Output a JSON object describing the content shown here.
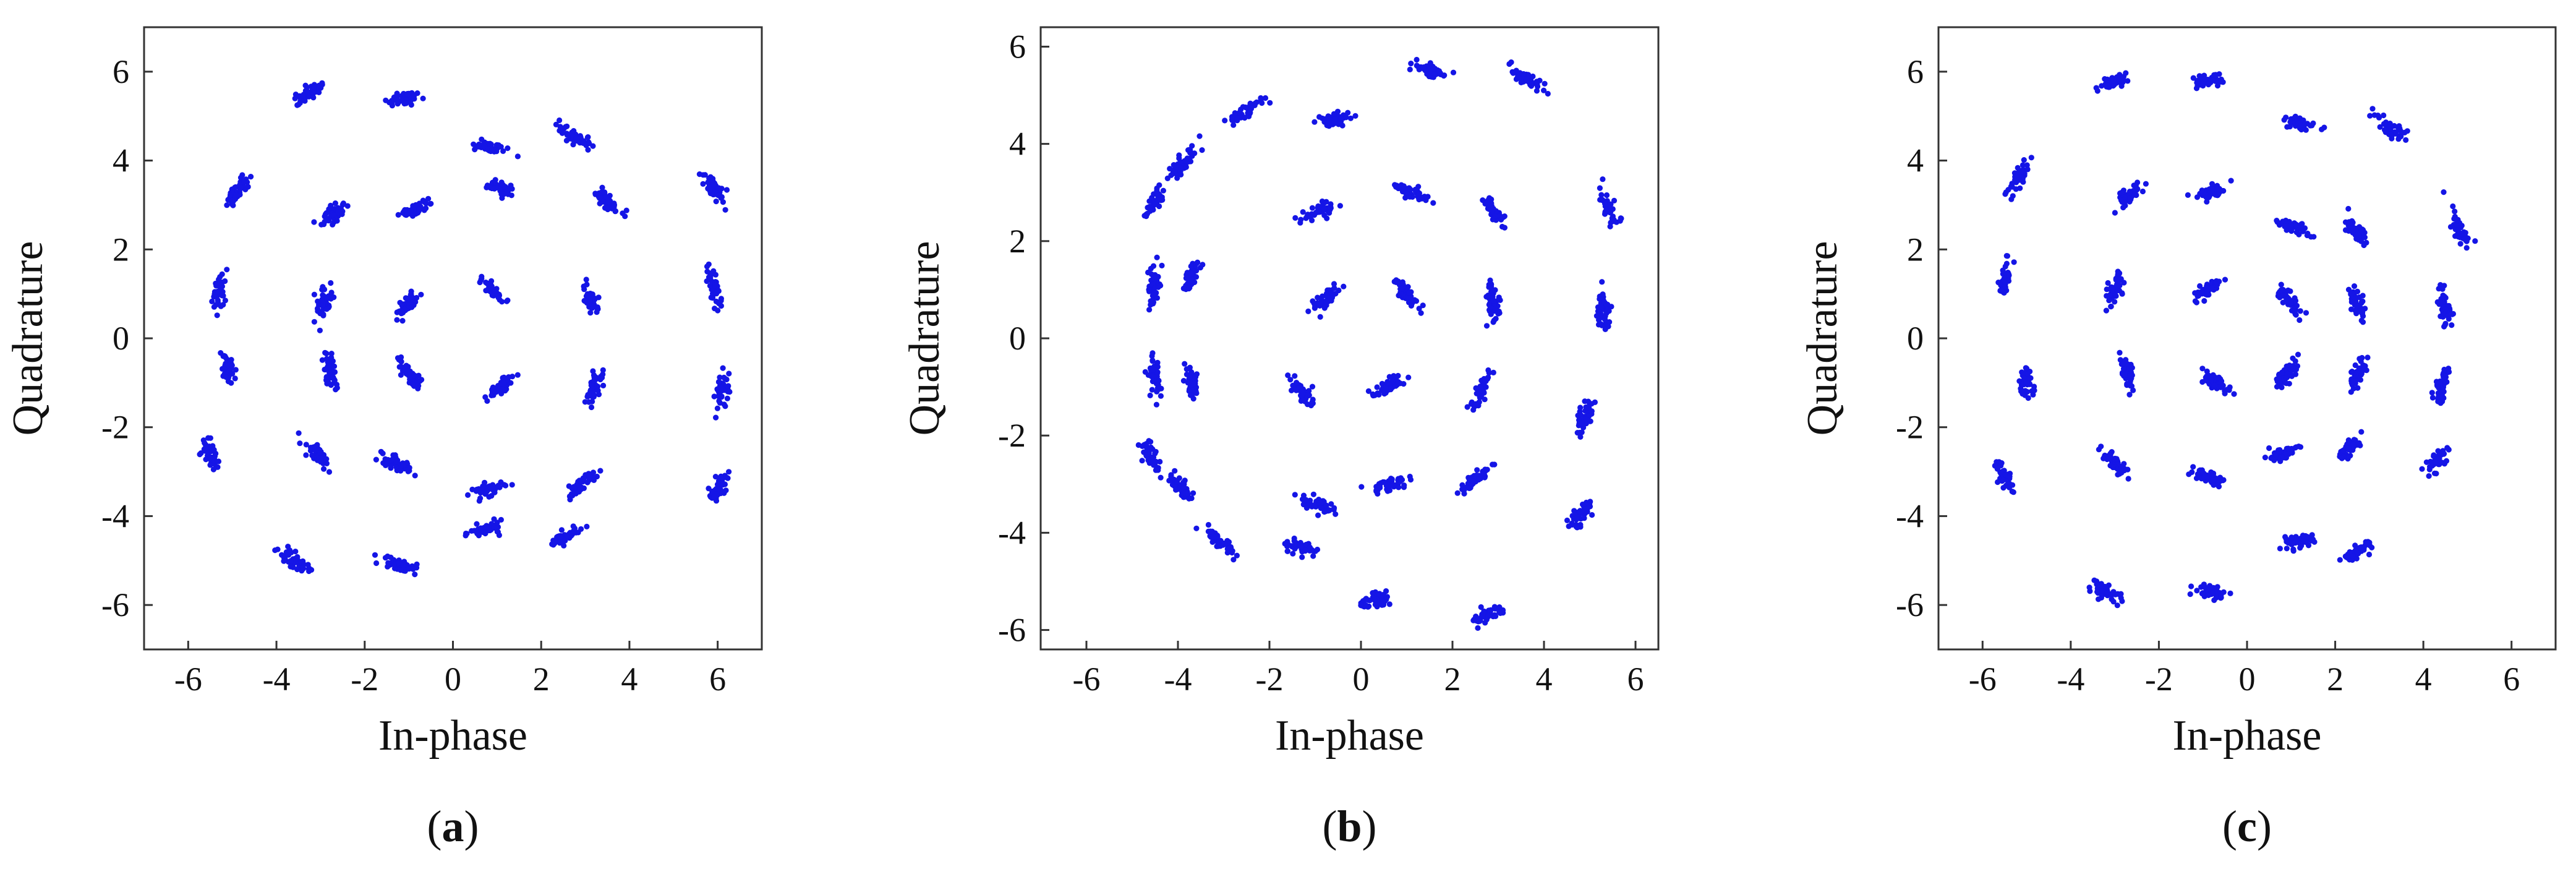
{
  "figure": {
    "background": "#ffffff"
  },
  "style": {
    "point_color": "#1515e6"
  },
  "chart_data": [
    {
      "type": "scatter",
      "caption_prefix": "(",
      "caption_letter": "a",
      "caption_suffix": ")",
      "xlabel": "In-phase",
      "ylabel": "Quadrature",
      "xlim": [
        -7,
        7
      ],
      "ylim": [
        -7,
        7
      ],
      "xticks": [
        -6,
        -4,
        -2,
        0,
        2,
        4,
        6
      ],
      "yticks": [
        -6,
        -4,
        -2,
        0,
        2,
        4,
        6
      ],
      "grid": false,
      "legend": false,
      "clusters": [
        {
          "x": -3.3,
          "y": 5.5
        },
        {
          "x": -1.1,
          "y": 5.4
        },
        {
          "x": -4.9,
          "y": 3.3
        },
        {
          "x": 0.8,
          "y": 4.3
        },
        {
          "x": 2.8,
          "y": 4.5
        },
        {
          "x": 5.9,
          "y": 3.4
        },
        {
          "x": -2.7,
          "y": 2.8
        },
        {
          "x": -0.9,
          "y": 2.9
        },
        {
          "x": 1.1,
          "y": 3.4
        },
        {
          "x": 3.5,
          "y": 3.1
        },
        {
          "x": -5.3,
          "y": 1.0
        },
        {
          "x": -2.9,
          "y": 0.8
        },
        {
          "x": -1.0,
          "y": 0.8
        },
        {
          "x": 0.9,
          "y": 1.1
        },
        {
          "x": 3.1,
          "y": 0.9
        },
        {
          "x": 5.9,
          "y": 1.2
        },
        {
          "x": -5.1,
          "y": -0.6
        },
        {
          "x": -2.8,
          "y": -0.7
        },
        {
          "x": -1.0,
          "y": -0.8
        },
        {
          "x": 1.1,
          "y": -1.1
        },
        {
          "x": 3.2,
          "y": -1.1
        },
        {
          "x": 6.1,
          "y": -1.2
        },
        {
          "x": -5.5,
          "y": -2.6
        },
        {
          "x": -3.0,
          "y": -2.7
        },
        {
          "x": -1.3,
          "y": -2.8
        },
        {
          "x": 0.8,
          "y": -3.4
        },
        {
          "x": 2.9,
          "y": -3.3
        },
        {
          "x": 6.0,
          "y": -3.4
        },
        {
          "x": 0.8,
          "y": -4.3
        },
        {
          "x": 2.5,
          "y": -4.5
        },
        {
          "x": -3.6,
          "y": -5.0
        },
        {
          "x": -1.2,
          "y": -5.1
        }
      ]
    },
    {
      "type": "scatter",
      "caption_prefix": "(",
      "caption_letter": "b",
      "caption_suffix": ")",
      "xlabel": "In-phase",
      "ylabel": "Quadrature",
      "xlim": [
        -7,
        6.5
      ],
      "ylim": [
        -6.4,
        6.4
      ],
      "xticks": [
        -6,
        -4,
        -2,
        0,
        2,
        4,
        6
      ],
      "yticks": [
        -6,
        -4,
        -2,
        0,
        2,
        4,
        6
      ],
      "grid": false,
      "legend": false,
      "clusters": [
        {
          "x": 1.5,
          "y": 5.5
        },
        {
          "x": 3.7,
          "y": 5.3
        },
        {
          "x": -2.5,
          "y": 4.7
        },
        {
          "x": -0.6,
          "y": 4.5
        },
        {
          "x": -3.9,
          "y": 3.6
        },
        {
          "x": 1.1,
          "y": 3.0
        },
        {
          "x": 2.9,
          "y": 2.6
        },
        {
          "x": 5.4,
          "y": 2.7
        },
        {
          "x": -4.5,
          "y": 2.8
        },
        {
          "x": -0.9,
          "y": 2.6
        },
        {
          "x": -3.7,
          "y": 1.3
        },
        {
          "x": -4.5,
          "y": 1.1
        },
        {
          "x": -0.8,
          "y": 0.8
        },
        {
          "x": 1.0,
          "y": 0.9
        },
        {
          "x": 2.9,
          "y": 0.7
        },
        {
          "x": 5.3,
          "y": 0.6
        },
        {
          "x": -4.5,
          "y": -0.7
        },
        {
          "x": -3.7,
          "y": -0.9
        },
        {
          "x": -1.3,
          "y": -1.1
        },
        {
          "x": 0.6,
          "y": -1.0
        },
        {
          "x": 2.6,
          "y": -1.1
        },
        {
          "x": 4.9,
          "y": -1.6
        },
        {
          "x": -4.6,
          "y": -2.4
        },
        {
          "x": -3.9,
          "y": -3.1
        },
        {
          "x": -1.0,
          "y": -3.4
        },
        {
          "x": 0.6,
          "y": -3.0
        },
        {
          "x": 2.5,
          "y": -2.9
        },
        {
          "x": 4.8,
          "y": -3.6
        },
        {
          "x": -3.1,
          "y": -4.2
        },
        {
          "x": -1.3,
          "y": -4.3
        },
        {
          "x": 0.4,
          "y": -5.4
        },
        {
          "x": 2.8,
          "y": -5.7
        }
      ]
    },
    {
      "type": "scatter",
      "caption_prefix": "(",
      "caption_letter": "c",
      "caption_suffix": ")",
      "xlabel": "In-phase",
      "ylabel": "Quadrature",
      "xlim": [
        -7,
        7
      ],
      "ylim": [
        -7,
        7
      ],
      "xticks": [
        -6,
        -4,
        -2,
        0,
        2,
        4,
        6
      ],
      "yticks": [
        -6,
        -4,
        -2,
        0,
        2,
        4,
        6
      ],
      "grid": false,
      "legend": false,
      "clusters": [
        {
          "x": -3.0,
          "y": 5.8
        },
        {
          "x": -0.9,
          "y": 5.8
        },
        {
          "x": 1.2,
          "y": 4.8
        },
        {
          "x": 3.3,
          "y": 4.7
        },
        {
          "x": -5.2,
          "y": 3.6
        },
        {
          "x": -2.7,
          "y": 3.2
        },
        {
          "x": -0.8,
          "y": 3.3
        },
        {
          "x": 1.1,
          "y": 2.5
        },
        {
          "x": 2.5,
          "y": 2.4
        },
        {
          "x": 4.8,
          "y": 2.5
        },
        {
          "x": -5.5,
          "y": 1.3
        },
        {
          "x": -3.0,
          "y": 1.1
        },
        {
          "x": -0.9,
          "y": 1.1
        },
        {
          "x": 1.0,
          "y": 0.8
        },
        {
          "x": 2.5,
          "y": 0.8
        },
        {
          "x": 4.5,
          "y": 0.7
        },
        {
          "x": -5.0,
          "y": -1.0
        },
        {
          "x": -2.7,
          "y": -0.8
        },
        {
          "x": -0.7,
          "y": -1.0
        },
        {
          "x": 0.9,
          "y": -0.8
        },
        {
          "x": 2.5,
          "y": -0.8
        },
        {
          "x": 4.4,
          "y": -1.1
        },
        {
          "x": -5.5,
          "y": -3.1
        },
        {
          "x": -3.0,
          "y": -2.8
        },
        {
          "x": -0.9,
          "y": -3.1
        },
        {
          "x": 0.8,
          "y": -2.6
        },
        {
          "x": 2.3,
          "y": -2.5
        },
        {
          "x": 4.3,
          "y": -2.8
        },
        {
          "x": 1.1,
          "y": -4.6
        },
        {
          "x": 2.5,
          "y": -4.8
        },
        {
          "x": -3.2,
          "y": -5.7
        },
        {
          "x": -0.8,
          "y": -5.7
        }
      ]
    }
  ]
}
